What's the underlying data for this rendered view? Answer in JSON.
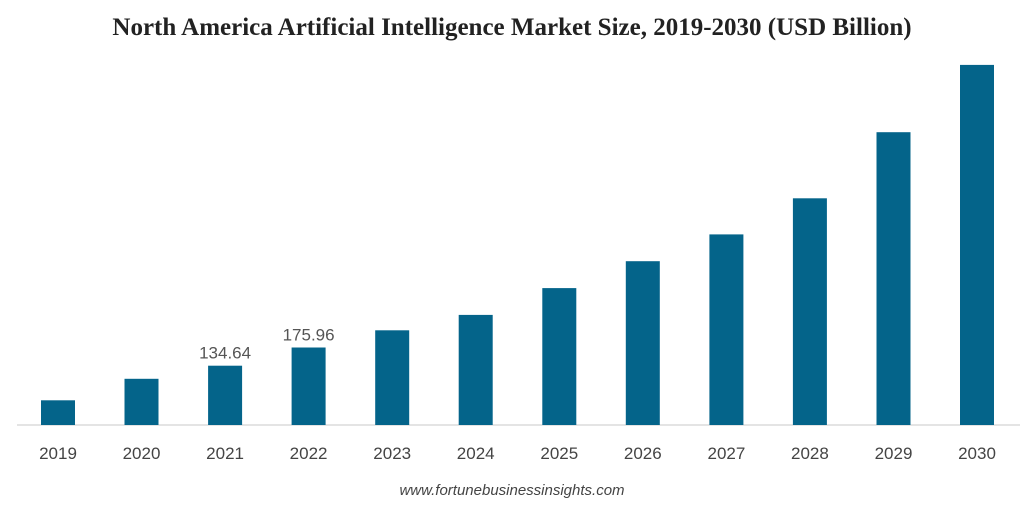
{
  "chart_data": {
    "type": "bar",
    "title": "North America Artificial Intelligence Market Size, 2019-2030 (USD Billion)",
    "categories": [
      "2019",
      "2020",
      "2021",
      "2022",
      "2023",
      "2024",
      "2025",
      "2026",
      "2027",
      "2028",
      "2029",
      "2030"
    ],
    "series": [
      {
        "values": [
          56,
          105,
          134.64,
          175.96,
          215,
          250,
          311,
          372,
          433,
          515,
          665,
          818
        ]
      }
    ],
    "data_labels": {
      "2021": "134.64",
      "2022": "175.96"
    },
    "bar_color": "#04648a",
    "grid": false,
    "legend": "none",
    "ylim": [
      0,
      820
    ]
  },
  "source": "www.fortunebusinessinsights.com"
}
